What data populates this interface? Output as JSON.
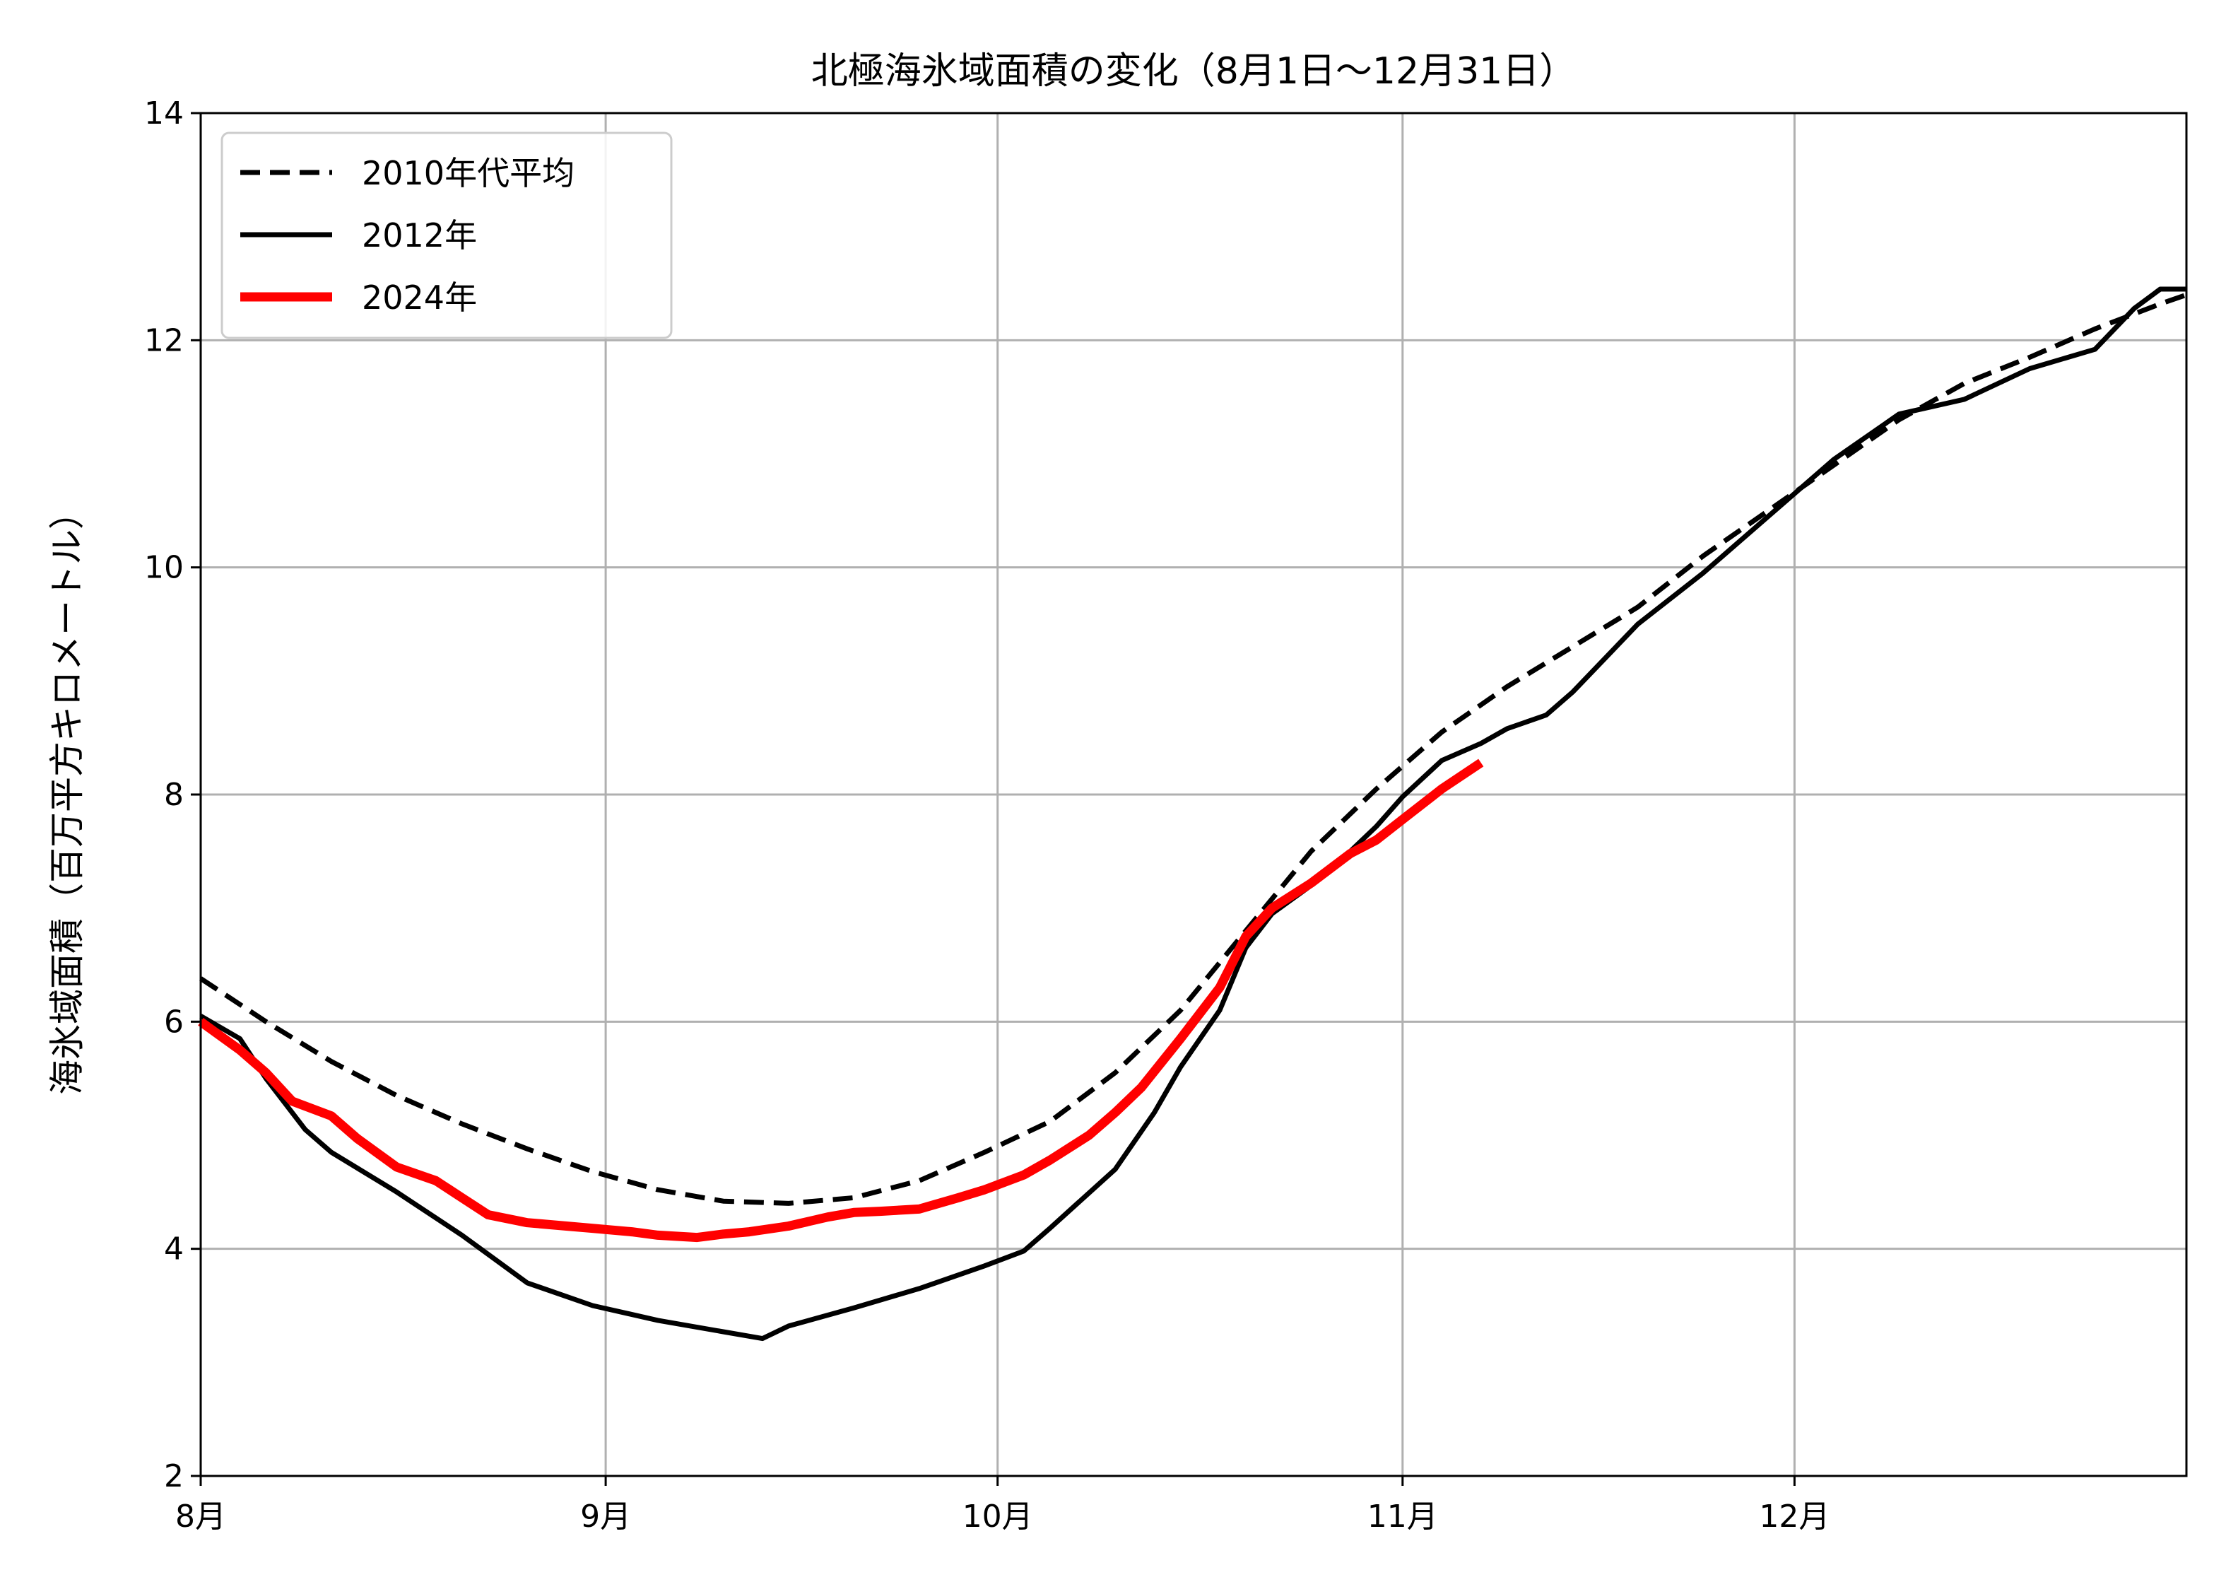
{
  "chart_data": {
    "type": "line",
    "title": "北極海氷域面積の変化（8月1日～12月31日）",
    "xlabel": "",
    "ylabel": "海氷域面積（百万平方キロメートル）",
    "xlim": [
      0,
      152
    ],
    "ylim": [
      2,
      14
    ],
    "grid": true,
    "legend_position": "top-left",
    "x_ticks": [
      {
        "value": 0,
        "label": "8月"
      },
      {
        "value": 31,
        "label": "9月"
      },
      {
        "value": 61,
        "label": "10月"
      },
      {
        "value": 92,
        "label": "11月"
      },
      {
        "value": 122,
        "label": "12月"
      }
    ],
    "y_ticks": [
      {
        "value": 2,
        "label": "2"
      },
      {
        "value": 4,
        "label": "4"
      },
      {
        "value": 6,
        "label": "6"
      },
      {
        "value": 8,
        "label": "8"
      },
      {
        "value": 10,
        "label": "10"
      },
      {
        "value": 12,
        "label": "12"
      },
      {
        "value": 14,
        "label": "14"
      }
    ],
    "series": [
      {
        "name": "2010年代平均",
        "color": "#000000",
        "style": "dashed",
        "x": [
          0,
          5,
          10,
          15,
          20,
          25,
          30,
          35,
          40,
          45,
          50,
          55,
          60,
          65,
          70,
          75,
          80,
          85,
          90,
          95,
          100,
          105,
          110,
          115,
          120,
          125,
          130,
          135,
          140,
          145,
          150,
          152
        ],
        "y": [
          6.38,
          6.0,
          5.65,
          5.35,
          5.1,
          4.88,
          4.68,
          4.52,
          4.42,
          4.4,
          4.45,
          4.6,
          4.85,
          5.12,
          5.55,
          6.1,
          6.8,
          7.5,
          8.05,
          8.55,
          8.95,
          9.3,
          9.65,
          10.1,
          10.5,
          10.9,
          11.3,
          11.62,
          11.85,
          12.1,
          12.32,
          12.4
        ]
      },
      {
        "name": "2012年",
        "color": "#000000",
        "style": "solid",
        "x": [
          0,
          3,
          5,
          8,
          10,
          15,
          20,
          25,
          30,
          35,
          40,
          43,
          45,
          50,
          55,
          60,
          63,
          65,
          70,
          73,
          75,
          78,
          80,
          82,
          85,
          88,
          90,
          92,
          95,
          98,
          100,
          103,
          105,
          110,
          115,
          120,
          125,
          130,
          135,
          140,
          145,
          148,
          150,
          152
        ],
        "y": [
          6.05,
          5.85,
          5.5,
          5.05,
          4.85,
          4.5,
          4.12,
          3.7,
          3.5,
          3.37,
          3.27,
          3.21,
          3.32,
          3.48,
          3.65,
          3.85,
          3.98,
          4.18,
          4.7,
          5.2,
          5.6,
          6.1,
          6.65,
          6.95,
          7.2,
          7.5,
          7.72,
          7.98,
          8.3,
          8.45,
          8.58,
          8.7,
          8.9,
          9.5,
          9.95,
          10.45,
          10.95,
          11.35,
          11.48,
          11.75,
          11.92,
          12.28,
          12.45,
          12.45
        ]
      },
      {
        "name": "2024年",
        "color": "#ff0000",
        "style": "solid",
        "x": [
          0,
          3,
          5,
          7,
          10,
          12,
          15,
          18,
          20,
          22,
          25,
          28,
          30,
          33,
          35,
          38,
          40,
          42,
          45,
          48,
          50,
          52,
          55,
          58,
          60,
          63,
          65,
          68,
          70,
          72,
          75,
          78,
          80,
          82,
          85,
          88,
          90,
          92,
          95,
          98
        ],
        "y": [
          6.0,
          5.75,
          5.55,
          5.3,
          5.17,
          4.97,
          4.72,
          4.6,
          4.45,
          4.3,
          4.23,
          4.2,
          4.18,
          4.15,
          4.12,
          4.1,
          4.13,
          4.15,
          4.2,
          4.28,
          4.32,
          4.33,
          4.35,
          4.45,
          4.52,
          4.65,
          4.78,
          5.0,
          5.2,
          5.42,
          5.85,
          6.3,
          6.75,
          7.0,
          7.22,
          7.48,
          7.6,
          7.78,
          8.05,
          8.28
        ]
      }
    ]
  }
}
